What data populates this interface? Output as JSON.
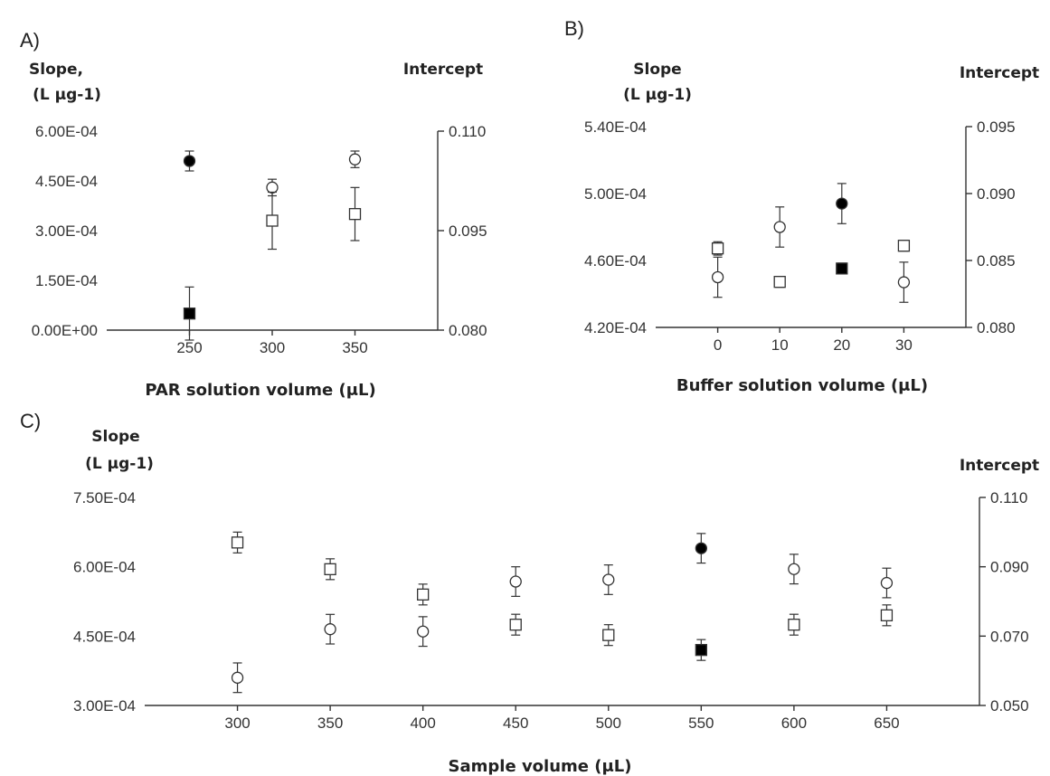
{
  "chart_data": [
    {
      "type": "scatter",
      "panel_label": "A)",
      "xlabel": "PAR solution volume (μL)",
      "ylabel": [
        "Slope,",
        "(L  μg-1)"
      ],
      "y2label": "Intercept",
      "x_ticks": [
        250,
        300,
        350
      ],
      "xlim": [
        200,
        400
      ],
      "ylim": [
        0,
        0.0006
      ],
      "y_ticks": [
        "0.00E+00",
        "1.50E-04",
        "3.00E-04",
        "4.50E-04",
        "6.00E-04"
      ],
      "y2lim": [
        0.08,
        0.11
      ],
      "y2_ticks": [
        "0.080",
        "0.095",
        "0.110"
      ],
      "series": [
        {
          "axis": "left",
          "marker": "circle",
          "points": [
            {
              "x": 250,
              "y": 0.00051,
              "err": 3e-05,
              "filled": true
            },
            {
              "x": 300,
              "y": 0.00043,
              "err": 2.5e-05,
              "filled": false
            },
            {
              "x": 350,
              "y": 0.000515,
              "err": 2.5e-05,
              "filled": false
            }
          ]
        },
        {
          "axis": "right",
          "marker": "square",
          "points": [
            {
              "x": 250,
              "y": 0.0825,
              "err": 0.004,
              "filled": true
            },
            {
              "x": 300,
              "y": 0.0965,
              "err": 0.0043,
              "filled": false
            },
            {
              "x": 350,
              "y": 0.0975,
              "err": 0.004,
              "filled": false
            }
          ]
        }
      ]
    },
    {
      "type": "scatter",
      "panel_label": "B)",
      "xlabel": "Buffer solution volume (μL)",
      "ylabel": [
        "Slope",
        "(L μg-1)"
      ],
      "y2label": "Intercept",
      "x_ticks": [
        0,
        10,
        20,
        30
      ],
      "xlim": [
        -10,
        40
      ],
      "ylim": [
        0.00042,
        0.00054
      ],
      "y_ticks": [
        "4.20E-04",
        "4.60E-04",
        "5.00E-04",
        "5.40E-04"
      ],
      "y2lim": [
        0.08,
        0.095
      ],
      "y2_ticks": [
        "0.080",
        "0.085",
        "0.090",
        "0.095"
      ],
      "series": [
        {
          "axis": "left",
          "marker": "circle",
          "points": [
            {
              "x": 0,
              "y": 0.00045,
              "err": 1.2e-05,
              "filled": false
            },
            {
              "x": 10,
              "y": 0.00048,
              "err": 1.2e-05,
              "filled": false
            },
            {
              "x": 20,
              "y": 0.000494,
              "err": 1.2e-05,
              "filled": true
            },
            {
              "x": 30,
              "y": 0.000447,
              "err": 1.2e-05,
              "filled": false
            }
          ]
        },
        {
          "axis": "right",
          "marker": "square",
          "points": [
            {
              "x": 0,
              "y": 0.0859,
              "err": 0.0005,
              "filled": false
            },
            {
              "x": 10,
              "y": 0.0834,
              "err": 0.0004,
              "filled": false
            },
            {
              "x": 20,
              "y": 0.0844,
              "err": 0.0004,
              "filled": true
            },
            {
              "x": 30,
              "y": 0.0861,
              "err": 0.0004,
              "filled": false
            }
          ]
        }
      ]
    },
    {
      "type": "scatter",
      "panel_label": "C)",
      "xlabel": "Sample volume (μL)",
      "ylabel": [
        "Slope",
        "(L μg-1)"
      ],
      "y2label": "Intercept",
      "x_ticks": [
        300,
        350,
        400,
        450,
        500,
        550,
        600,
        650
      ],
      "xlim": [
        250,
        700
      ],
      "ylim": [
        0.0003,
        0.00075
      ],
      "y_ticks": [
        "3.00E-04",
        "4.50E-04",
        "6.00E-04",
        "7.50E-04"
      ],
      "y2lim": [
        0.05,
        0.11
      ],
      "y2_ticks": [
        "0.050",
        "0.070",
        "0.090",
        "0.110"
      ],
      "series": [
        {
          "axis": "left",
          "marker": "circle",
          "points": [
            {
              "x": 300,
              "y": 0.00036,
              "err": 3.2e-05,
              "filled": false
            },
            {
              "x": 350,
              "y": 0.000465,
              "err": 3.2e-05,
              "filled": false
            },
            {
              "x": 400,
              "y": 0.00046,
              "err": 3.2e-05,
              "filled": false
            },
            {
              "x": 450,
              "y": 0.000568,
              "err": 3.2e-05,
              "filled": false
            },
            {
              "x": 500,
              "y": 0.000572,
              "err": 3.2e-05,
              "filled": false
            },
            {
              "x": 550,
              "y": 0.00064,
              "err": 3.2e-05,
              "filled": true
            },
            {
              "x": 600,
              "y": 0.000595,
              "err": 3.2e-05,
              "filled": false
            },
            {
              "x": 650,
              "y": 0.000565,
              "err": 3.2e-05,
              "filled": false
            }
          ]
        },
        {
          "axis": "right",
          "marker": "square",
          "points": [
            {
              "x": 300,
              "y": 0.097,
              "err": 0.003,
              "filled": false
            },
            {
              "x": 350,
              "y": 0.0893,
              "err": 0.003,
              "filled": false
            },
            {
              "x": 400,
              "y": 0.082,
              "err": 0.003,
              "filled": false
            },
            {
              "x": 450,
              "y": 0.0733,
              "err": 0.003,
              "filled": false
            },
            {
              "x": 500,
              "y": 0.0703,
              "err": 0.003,
              "filled": false
            },
            {
              "x": 550,
              "y": 0.066,
              "err": 0.003,
              "filled": true
            },
            {
              "x": 600,
              "y": 0.0733,
              "err": 0.003,
              "filled": false
            },
            {
              "x": 650,
              "y": 0.076,
              "err": 0.003,
              "filled": false
            }
          ]
        }
      ]
    }
  ]
}
